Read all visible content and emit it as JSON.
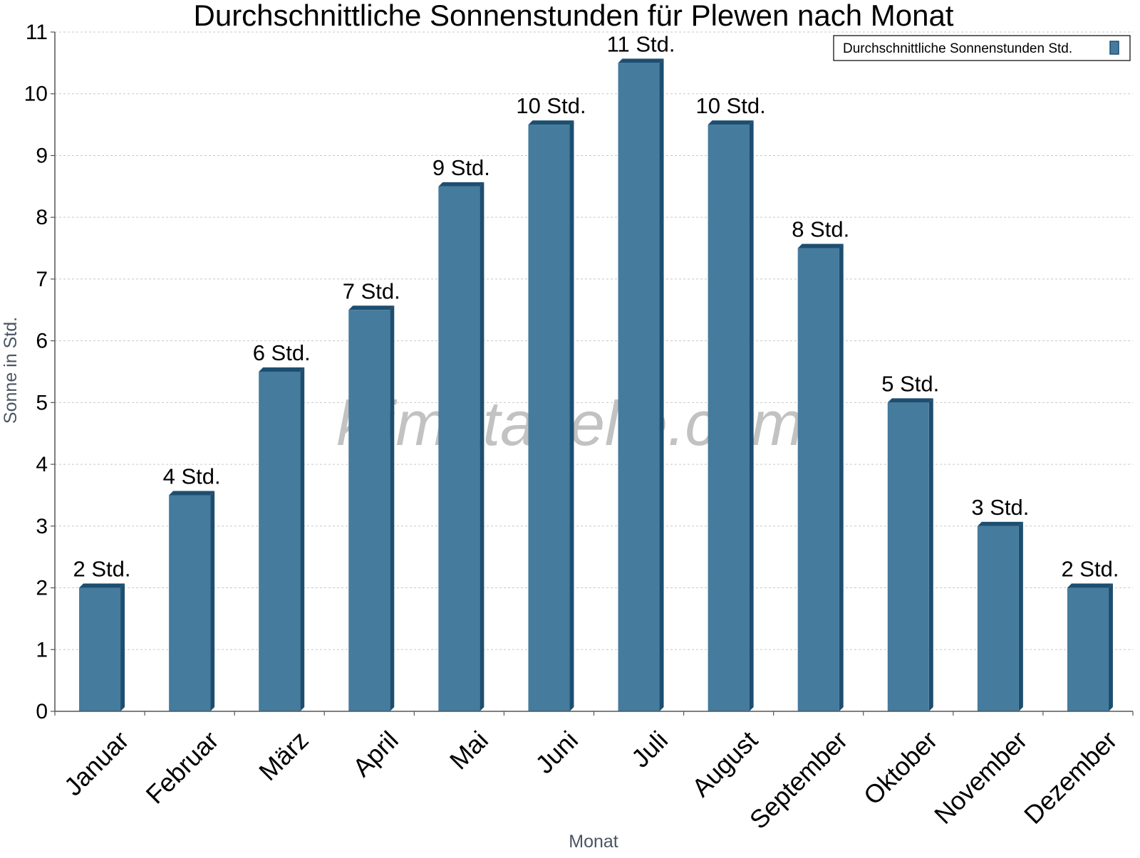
{
  "chart_data": {
    "type": "bar",
    "title": "Durchschnittliche Sonnenstunden für Plewen nach Monat",
    "xlabel": "Monat",
    "ylabel": "Sonne in Std.",
    "ylim": [
      0,
      11
    ],
    "yticks": [
      0,
      1,
      2,
      3,
      4,
      5,
      6,
      7,
      8,
      9,
      10,
      11
    ],
    "grid": true,
    "legend_position": "top-right",
    "categories": [
      "Januar",
      "Februar",
      "März",
      "April",
      "Mai",
      "Juni",
      "Juli",
      "August",
      "September",
      "Oktober",
      "November",
      "Dezember"
    ],
    "series": [
      {
        "name": "Durchschnittliche Sonnenstunden Std.",
        "color": "#457b9d",
        "edge_color": "#1d4e70",
        "values": [
          2,
          3.5,
          5.5,
          6.5,
          8.5,
          9.5,
          10.5,
          9.5,
          7.5,
          5,
          3,
          2
        ],
        "labels": [
          "2 Std.",
          "4 Std.",
          "6 Std.",
          "7 Std.",
          "9 Std.",
          "10 Std.",
          "11 Std.",
          "10 Std.",
          "8 Std.",
          "5 Std.",
          "3 Std.",
          "2 Std."
        ]
      }
    ]
  },
  "watermark": "klimatabelle.com"
}
